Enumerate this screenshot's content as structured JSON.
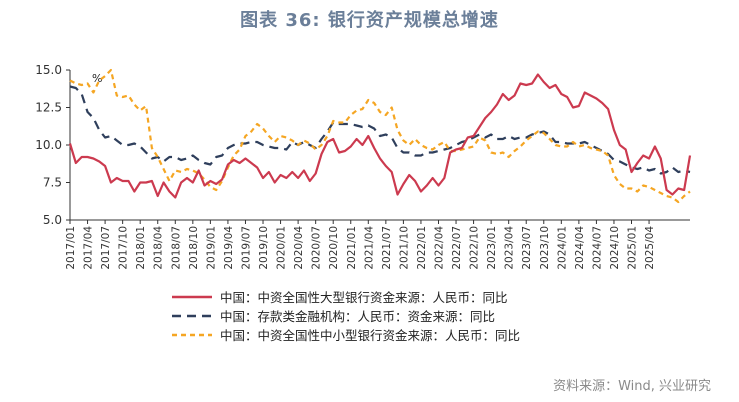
{
  "title": "图表 36: 银行资产规模总增速",
  "source": "资料来源：Wind, 兴业研究",
  "chart_data": {
    "type": "line",
    "unit": "%",
    "ylim": [
      5.0,
      15.0
    ],
    "yticks": [
      "5.0",
      "7.5",
      "10.0",
      "12.5",
      "15.0"
    ],
    "x_start": "2017/01",
    "x_end": "2025/04",
    "xticks": [
      "2017/01",
      "2017/04",
      "2017/07",
      "2017/10",
      "2018/01",
      "2018/04",
      "2018/07",
      "2018/10",
      "2019/01",
      "2019/04",
      "2019/07",
      "2019/10",
      "2020/01",
      "2020/04",
      "2020/07",
      "2020/10",
      "2021/01",
      "2021/04",
      "2021/07",
      "2021/10",
      "2022/01",
      "2022/04",
      "2022/07",
      "2022/10",
      "2023/01",
      "2023/04",
      "2023/07",
      "2023/10",
      "2024/01",
      "2024/04",
      "2024/07",
      "2024/10",
      "2025/01",
      "2025/04"
    ],
    "series": [
      {
        "name": "中国：中资全国性大型银行资金来源：人民币：同比",
        "color": "#cc3a4f",
        "dash": "solid",
        "values": [
          10.1,
          8.8,
          9.2,
          9.2,
          9.1,
          8.9,
          8.6,
          7.5,
          7.8,
          7.6,
          7.6,
          6.9,
          7.5,
          7.5,
          7.6,
          6.6,
          7.5,
          6.9,
          6.5,
          7.5,
          7.8,
          7.5,
          8.3,
          7.3,
          7.6,
          7.4,
          7.7,
          8.7,
          9.0,
          8.8,
          9.1,
          8.8,
          8.5,
          7.8,
          8.2,
          7.5,
          8.0,
          7.8,
          8.2,
          7.8,
          8.3,
          7.6,
          8.1,
          9.4,
          10.2,
          10.4,
          9.5,
          9.6,
          9.9,
          10.4,
          10.0,
          10.6,
          9.8,
          9.1,
          8.6,
          8.2,
          6.7,
          7.4,
          8.0,
          7.6,
          6.9,
          7.3,
          7.8,
          7.3,
          7.8,
          9.5,
          9.7,
          9.8,
          10.5,
          10.6,
          11.2,
          11.8,
          12.2,
          12.7,
          13.4,
          13.0,
          13.3,
          14.1,
          14.0,
          14.1,
          14.7,
          14.2,
          13.8,
          14.0,
          13.4,
          13.2,
          12.5,
          12.6,
          13.5,
          13.3,
          13.1,
          12.8,
          12.4,
          11.0,
          10.0,
          9.7,
          8.2,
          8.8,
          9.3,
          9.1,
          9.9,
          9.1,
          7.0,
          6.7,
          7.1,
          7.0,
          9.3
        ]
      },
      {
        "name": "中国：存款类金融机构：人民币：资金来源：同比",
        "color": "#2f3f5c",
        "dash": "long",
        "values": [
          13.9,
          13.8,
          13.4,
          12.2,
          11.8,
          11.0,
          10.5,
          10.6,
          10.3,
          10.0,
          10.0,
          10.1,
          9.9,
          9.5,
          9.1,
          9.2,
          8.9,
          9.2,
          9.2,
          9.0,
          9.1,
          9.3,
          9.0,
          8.8,
          8.7,
          9.2,
          9.3,
          9.8,
          10.0,
          10.1,
          10.1,
          10.2,
          10.2,
          10.0,
          9.9,
          9.8,
          9.8,
          9.7,
          10.2,
          10.0,
          10.2,
          10.0,
          9.8,
          10.4,
          10.9,
          11.5,
          11.4,
          11.4,
          11.4,
          11.3,
          11.2,
          11.3,
          11.1,
          10.6,
          10.7,
          10.5,
          9.8,
          9.5,
          9.5,
          9.3,
          9.3,
          9.5,
          9.5,
          9.6,
          9.7,
          9.8,
          10.0,
          10.2,
          10.3,
          10.5,
          10.7,
          10.5,
          10.7,
          10.4,
          10.4,
          10.6,
          10.4,
          10.5,
          10.5,
          10.7,
          10.8,
          10.9,
          10.7,
          10.2,
          10.2,
          10.1,
          10.1,
          10.1,
          10.2,
          10.0,
          9.8,
          9.6,
          9.4,
          9.0,
          8.9,
          8.7,
          8.5,
          8.4,
          8.5,
          8.3,
          8.4,
          8.1,
          8.2,
          8.5,
          8.2,
          8.3,
          8.2
        ]
      },
      {
        "name": "中国：中资全国性中小型银行资金来源：人民币：同比",
        "color": "#f5a623",
        "dash": "short",
        "values": [
          14.3,
          14.1,
          14.0,
          14.1,
          13.5,
          14.3,
          14.6,
          15.0,
          13.3,
          13.2,
          13.3,
          12.7,
          12.3,
          12.6,
          9.8,
          9.2,
          8.4,
          7.6,
          8.3,
          8.2,
          8.4,
          8.3,
          8.1,
          7.7,
          7.2,
          7.0,
          7.6,
          8.5,
          9.3,
          9.7,
          10.6,
          10.9,
          11.4,
          11.1,
          10.6,
          10.2,
          10.6,
          10.5,
          10.3,
          10.0,
          10.3,
          10.1,
          9.7,
          10.0,
          10.6,
          11.6,
          11.5,
          11.5,
          12.0,
          12.3,
          12.4,
          13.0,
          12.8,
          12.2,
          12.0,
          12.5,
          11.0,
          10.3,
          10.0,
          10.4,
          10.0,
          9.8,
          9.7,
          10.0,
          10.2,
          9.6,
          9.6,
          9.7,
          9.8,
          9.9,
          10.5,
          10.3,
          9.5,
          9.4,
          9.5,
          9.2,
          9.6,
          9.9,
          10.3,
          10.6,
          10.9,
          10.8,
          10.4,
          10.0,
          9.9,
          9.9,
          10.2,
          9.9,
          10.0,
          9.8,
          9.7,
          9.6,
          9.3,
          8.0,
          7.4,
          7.1,
          7.1,
          6.9,
          7.3,
          7.2,
          7.0,
          6.8,
          6.6,
          6.5,
          6.2,
          6.6,
          6.9
        ]
      }
    ]
  }
}
